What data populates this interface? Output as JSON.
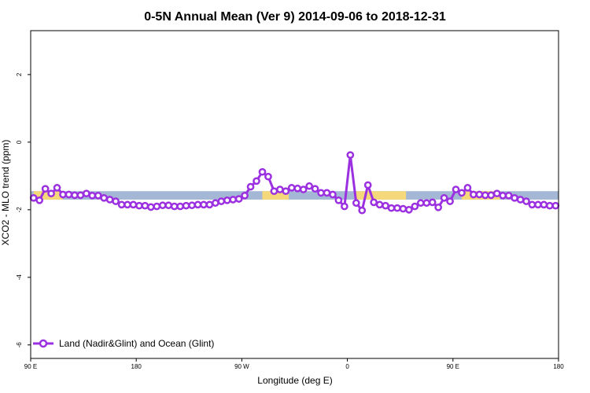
{
  "chart_data": {
    "type": "line",
    "title": "0-5N Annual Mean (Ver 9)   2014-09-06 to 2018-12-31",
    "xlabel": "Longitude (deg E)",
    "ylabel": "XCO2 - MLO trend (ppm)",
    "xlim": [
      0,
      360
    ],
    "ylim": [
      -6.4,
      3.3
    ],
    "xticks": [
      {
        "value": 0,
        "label": "90 E"
      },
      {
        "value": 72,
        "label": "180"
      },
      {
        "value": 144,
        "label": "90 W"
      },
      {
        "value": 216,
        "label": "0"
      },
      {
        "value": 288,
        "label": "90 E"
      },
      {
        "value": 360,
        "label": "180"
      }
    ],
    "yticks": [
      {
        "value": -6,
        "label": "-6"
      },
      {
        "value": -4,
        "label": "-4"
      },
      {
        "value": -2,
        "label": "-2"
      },
      {
        "value": 0,
        "label": "0"
      },
      {
        "value": 2,
        "label": "2"
      }
    ],
    "band": {
      "ymin": -1.7,
      "ymax": -1.45,
      "ocean_color": "#a4b8d6",
      "land_color": "#f5d87a"
    },
    "land_segments": [
      [
        2,
        22
      ],
      [
        158,
        176
      ],
      [
        222,
        256
      ],
      [
        294,
        320
      ]
    ],
    "series": [
      {
        "name": "Land (Nadir&Glint) and Ocean (Glint)",
        "color": "#9b30e0",
        "x": [
          2,
          6,
          10,
          14,
          18,
          22,
          26,
          30,
          34,
          38,
          42,
          46,
          50,
          54,
          58,
          62,
          66,
          70,
          74,
          78,
          82,
          86,
          90,
          94,
          98,
          102,
          106,
          110,
          114,
          118,
          122,
          126,
          130,
          134,
          138,
          142,
          146,
          150,
          154,
          158,
          162,
          166,
          170,
          174,
          178,
          182,
          186,
          190,
          194,
          198,
          202,
          206,
          210,
          214,
          218,
          222,
          226,
          230,
          234,
          238,
          242,
          246,
          250,
          254,
          258,
          262,
          266,
          270,
          274,
          278,
          282,
          286,
          290,
          294,
          298,
          302,
          306,
          310,
          314,
          318,
          322,
          326,
          330,
          334,
          338,
          342,
          346,
          350,
          354,
          358
        ],
        "values": [
          -1.65,
          -1.72,
          -1.38,
          -1.52,
          -1.35,
          -1.55,
          -1.55,
          -1.57,
          -1.57,
          -1.52,
          -1.58,
          -1.58,
          -1.65,
          -1.7,
          -1.75,
          -1.85,
          -1.85,
          -1.85,
          -1.88,
          -1.88,
          -1.92,
          -1.9,
          -1.87,
          -1.87,
          -1.9,
          -1.9,
          -1.88,
          -1.87,
          -1.85,
          -1.85,
          -1.85,
          -1.8,
          -1.75,
          -1.72,
          -1.7,
          -1.68,
          -1.58,
          -1.32,
          -1.15,
          -0.88,
          -1.02,
          -1.45,
          -1.4,
          -1.45,
          -1.35,
          -1.37,
          -1.4,
          -1.3,
          -1.38,
          -1.5,
          -1.5,
          -1.55,
          -1.72,
          -1.9,
          -0.38,
          -1.8,
          -2.02,
          -1.27,
          -1.78,
          -1.85,
          -1.88,
          -1.95,
          -1.95,
          -1.97,
          -2.0,
          -1.9,
          -1.8,
          -1.8,
          -1.78,
          -1.93,
          -1.65,
          -1.75,
          -1.4,
          -1.5,
          -1.35,
          -1.55,
          -1.55,
          -1.57,
          -1.57,
          -1.52,
          -1.58,
          -1.58,
          -1.65,
          -1.7,
          -1.75,
          -1.85,
          -1.85,
          -1.85,
          -1.88,
          -1.88
        ]
      }
    ],
    "legend": {
      "position": "bottom-left",
      "label": "Land (Nadir&Glint) and Ocean (Glint)"
    }
  }
}
